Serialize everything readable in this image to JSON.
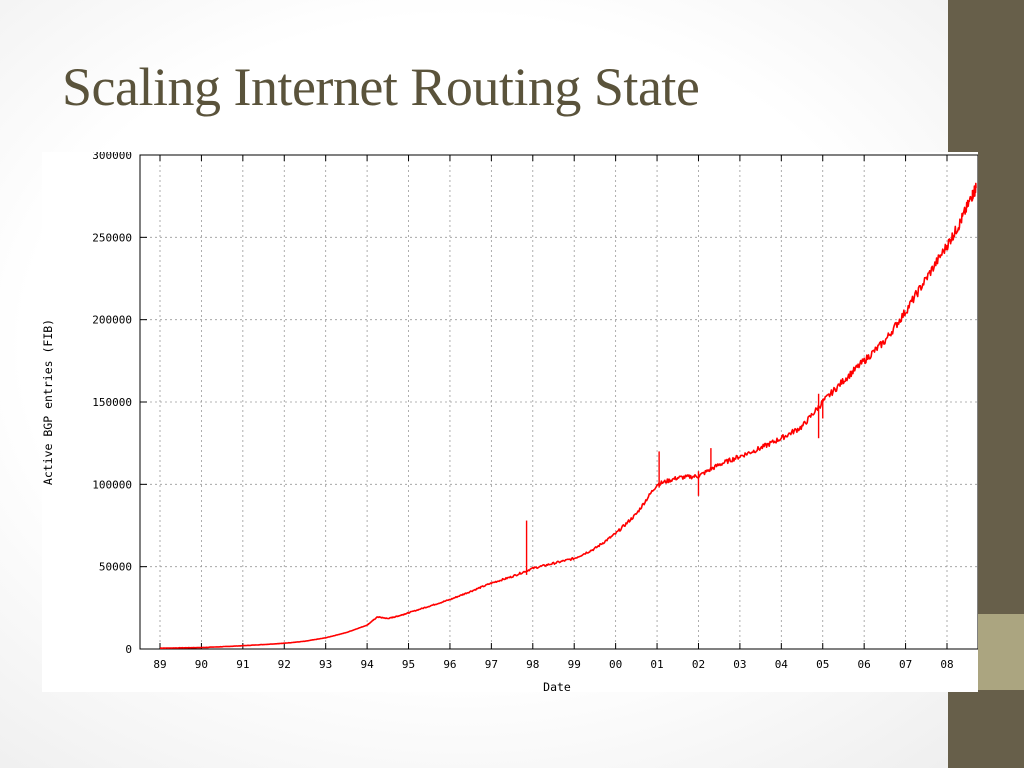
{
  "slide": {
    "title": "Scaling Internet Routing State",
    "colors": {
      "title": "#5a533b",
      "side_bar": "#675f4a",
      "side_accent": "#aba580"
    }
  },
  "chart_data": {
    "type": "line",
    "title": "",
    "xlabel": "Date",
    "ylabel": "Active BGP entries (FIB)",
    "x_ticks": [
      "89",
      "90",
      "91",
      "92",
      "93",
      "94",
      "95",
      "96",
      "97",
      "98",
      "99",
      "00",
      "01",
      "02",
      "03",
      "04",
      "05",
      "06",
      "07",
      "08"
    ],
    "y_ticks": [
      "0",
      "50000",
      "100000",
      "150000",
      "200000",
      "250000",
      "300000"
    ],
    "xlim": [
      1989.0,
      2008.7
    ],
    "ylim": [
      0,
      300000
    ],
    "grid": true,
    "grid_style": "dotted",
    "legend": "none",
    "series": [
      {
        "color": "#ff0000",
        "points": [
          [
            1989.0,
            500
          ],
          [
            1989.5,
            700
          ],
          [
            1990.0,
            900
          ],
          [
            1990.5,
            1400
          ],
          [
            1991.0,
            2000
          ],
          [
            1991.5,
            2700
          ],
          [
            1992.0,
            3500
          ],
          [
            1992.5,
            4700
          ],
          [
            1993.0,
            6800
          ],
          [
            1993.5,
            10000
          ],
          [
            1994.0,
            14500
          ],
          [
            1994.25,
            19500
          ],
          [
            1994.5,
            18500
          ],
          [
            1994.75,
            20000
          ],
          [
            1995.0,
            22000
          ],
          [
            1995.5,
            26000
          ],
          [
            1996.0,
            30000
          ],
          [
            1996.5,
            35000
          ],
          [
            1997.0,
            40000
          ],
          [
            1997.5,
            44000
          ],
          [
            1998.0,
            49000
          ],
          [
            1998.5,
            52000
          ],
          [
            1999.0,
            55000
          ],
          [
            1999.5,
            61000
          ],
          [
            2000.0,
            70000
          ],
          [
            2000.5,
            82000
          ],
          [
            2001.0,
            100000
          ],
          [
            2001.5,
            104000
          ],
          [
            2002.0,
            105000
          ],
          [
            2002.5,
            112000
          ],
          [
            2003.0,
            117000
          ],
          [
            2003.5,
            122000
          ],
          [
            2004.0,
            128000
          ],
          [
            2004.5,
            135000
          ],
          [
            2005.0,
            150000
          ],
          [
            2005.5,
            163000
          ],
          [
            2006.0,
            175000
          ],
          [
            2006.5,
            187000
          ],
          [
            2007.0,
            205000
          ],
          [
            2007.5,
            225000
          ],
          [
            2008.0,
            245000
          ],
          [
            2008.3,
            258000
          ],
          [
            2008.6,
            275000
          ],
          [
            2008.7,
            280000
          ]
        ],
        "spikes": [
          [
            1997.85,
            45000,
            78000
          ],
          [
            2001.05,
            98000,
            120000
          ],
          [
            2002.0,
            93000,
            108000
          ],
          [
            2002.3,
            110000,
            122000
          ],
          [
            2004.9,
            128000,
            155000
          ],
          [
            2005.0,
            140000,
            152000
          ]
        ]
      }
    ]
  }
}
